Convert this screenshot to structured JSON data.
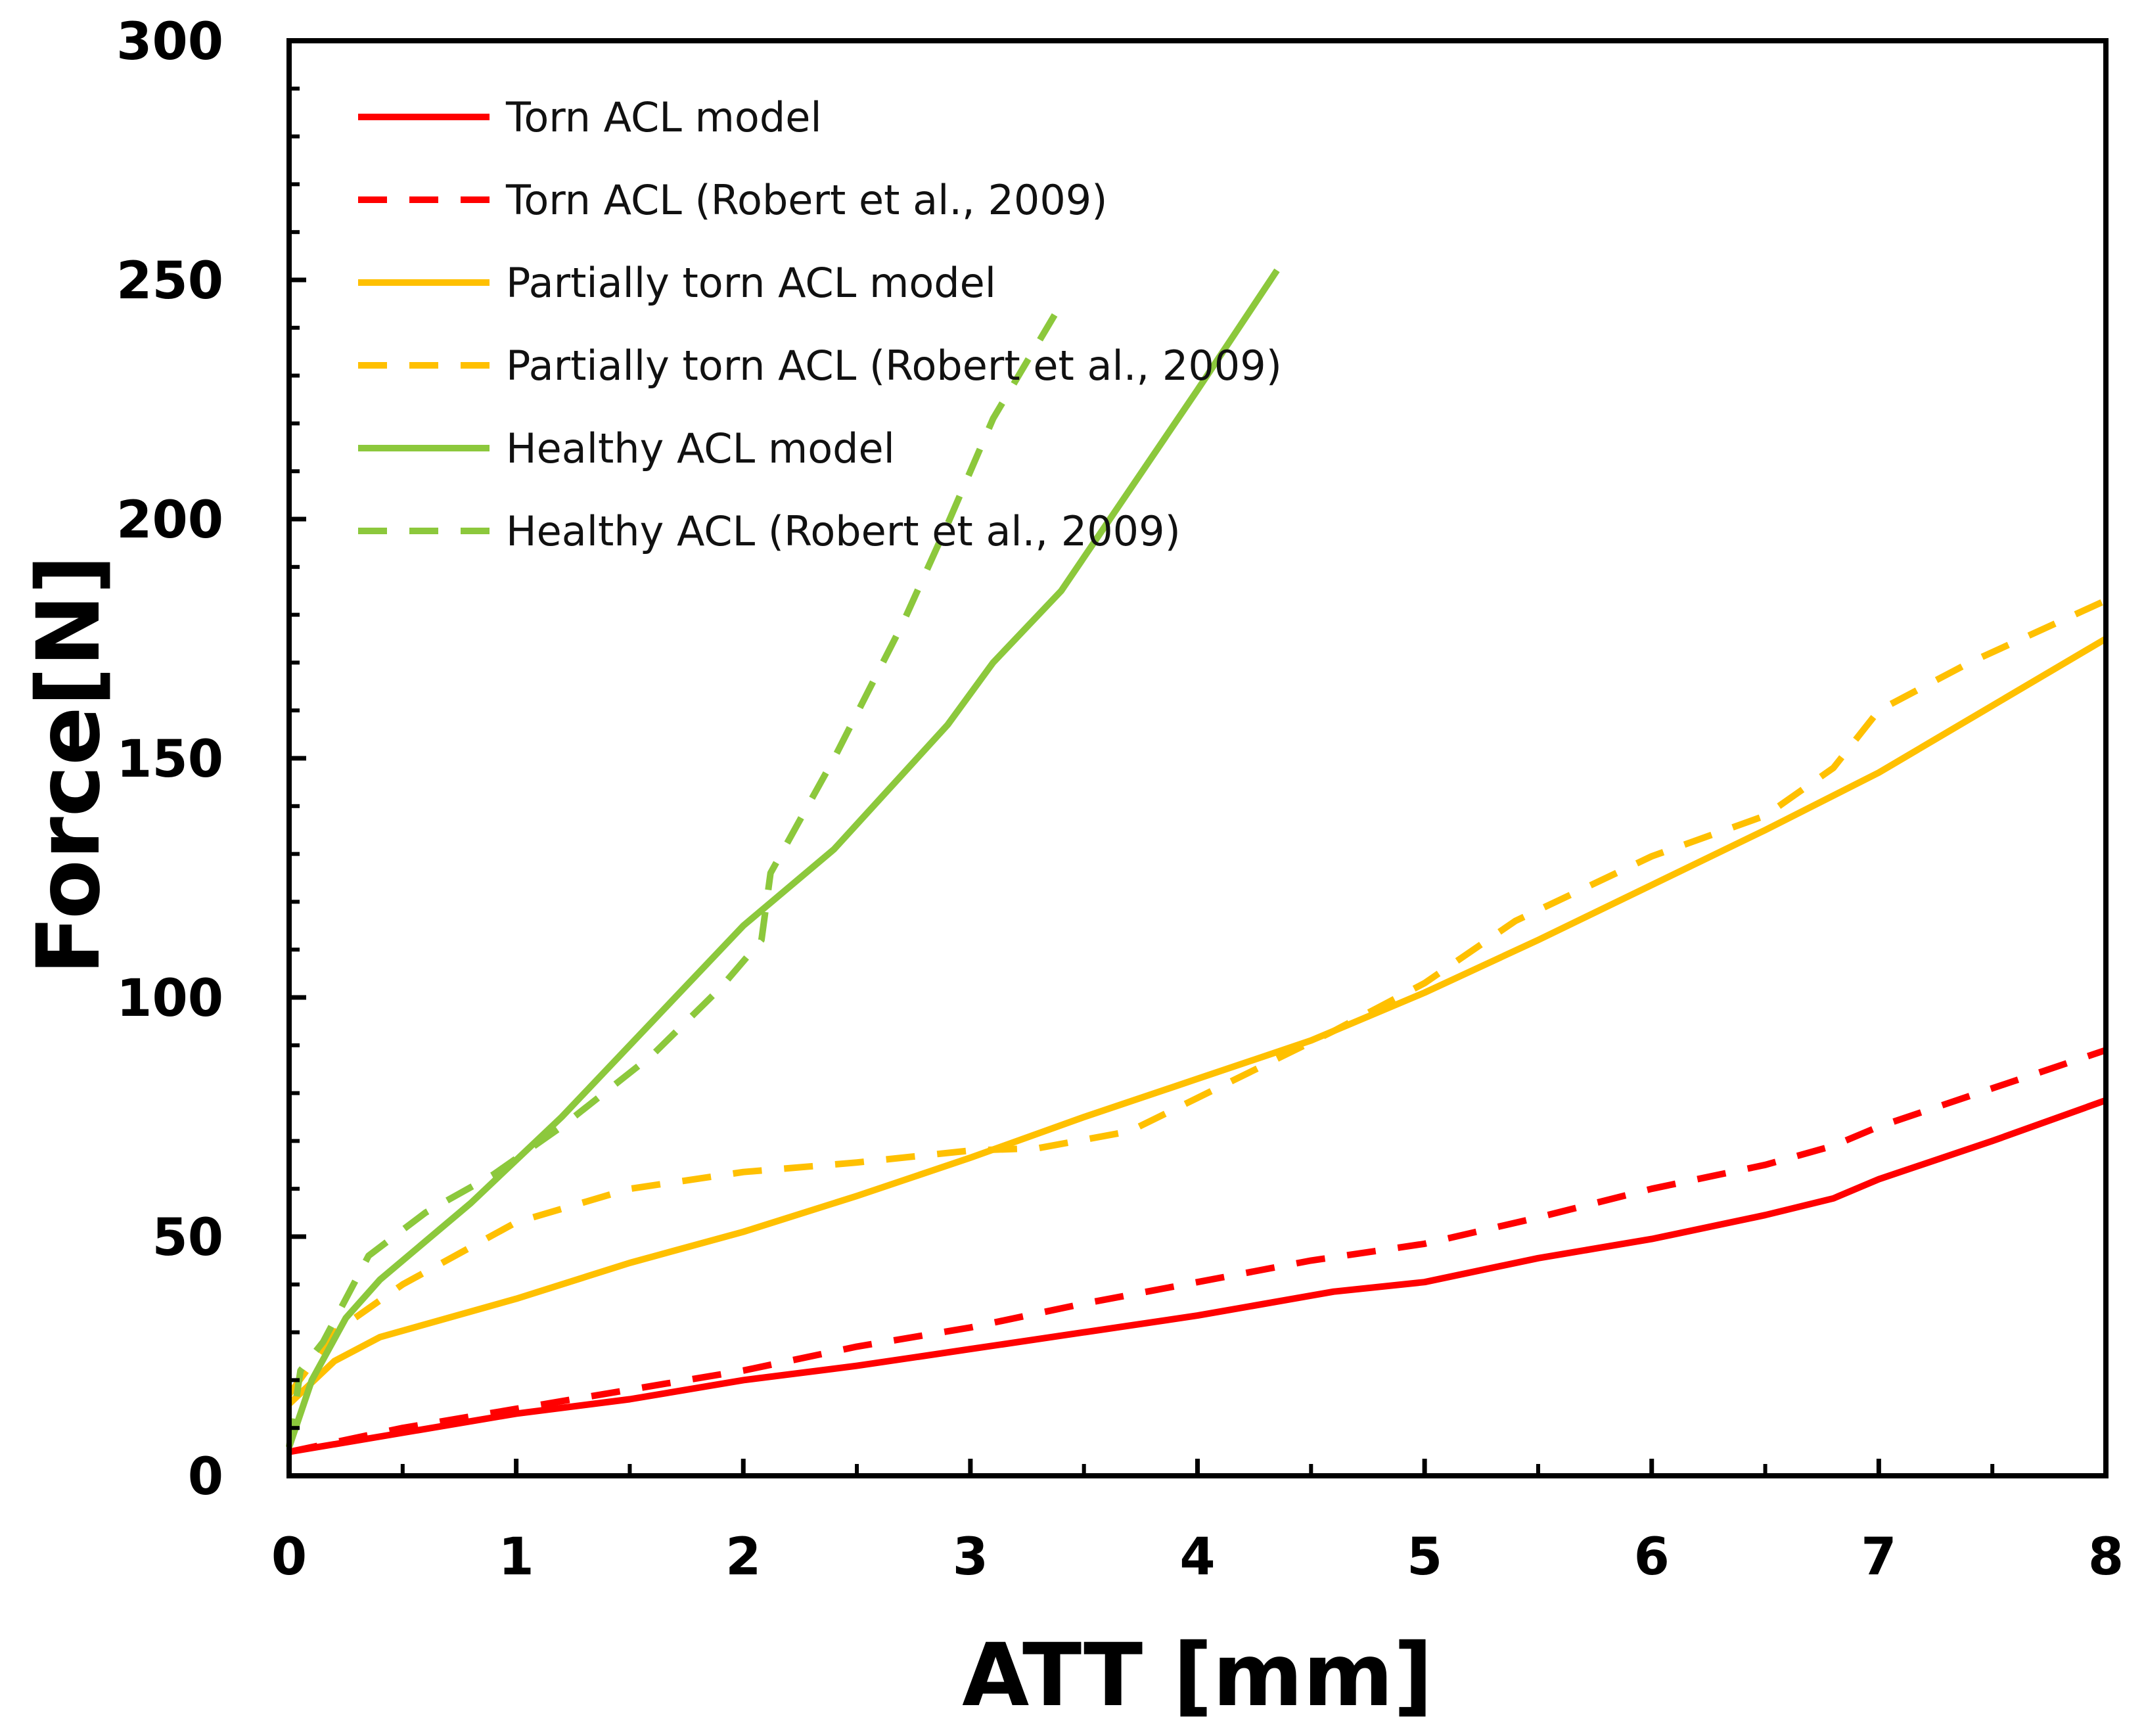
{
  "chart_data": {
    "type": "line",
    "title": "",
    "xlabel": "ATT [mm]",
    "ylabel": "Force[N]",
    "xlim": [
      0,
      8
    ],
    "ylim": [
      0,
      300
    ],
    "xticks": [
      0,
      1,
      2,
      3,
      4,
      5,
      6,
      7,
      8
    ],
    "yticks": [
      0,
      50,
      100,
      150,
      200,
      250,
      300
    ],
    "grid": false,
    "legend_position": "top-left",
    "series": [
      {
        "name": "Torn ACL model",
        "color": "#ff0000",
        "dash": "solid",
        "x": [
          0,
          0.5,
          1.0,
          1.5,
          2.0,
          2.5,
          3.0,
          3.5,
          4.0,
          4.6,
          5.0,
          5.5,
          6.0,
          6.5,
          6.8,
          7.0,
          7.5,
          8.0
        ],
        "y": [
          5,
          9,
          13,
          16,
          20,
          23,
          26.5,
          30,
          33.5,
          38.5,
          40.5,
          45.5,
          49.5,
          54.5,
          58,
          62,
          70,
          78.5
        ]
      },
      {
        "name": "Torn ACL (Robert et al., 2009)",
        "color": "#ff0000",
        "dash": "dashed",
        "x": [
          0,
          0.5,
          1.0,
          1.5,
          2.0,
          2.5,
          3.0,
          3.5,
          4.0,
          4.5,
          5.0,
          5.5,
          6.0,
          6.5,
          6.8,
          7.0,
          7.5,
          8.0
        ],
        "y": [
          5,
          10,
          14,
          18,
          22,
          27,
          31,
          36,
          40.5,
          45,
          48.5,
          54,
          60,
          65,
          69,
          73,
          81,
          89
        ]
      },
      {
        "name": "Partially torn ACL model",
        "color": "#ffc000",
        "dash": "solid",
        "x": [
          0,
          0.2,
          0.4,
          1.0,
          1.5,
          2.0,
          2.5,
          3.0,
          3.5,
          4.0,
          4.5,
          5.0,
          5.5,
          6.0,
          6.5,
          7.0,
          7.5,
          8.0
        ],
        "y": [
          15,
          24,
          29,
          37,
          44.5,
          51,
          58.5,
          66.5,
          75,
          83,
          91,
          101,
          112,
          123.5,
          135,
          147,
          161,
          175
        ]
      },
      {
        "name": "Partially torn ACL (Robert et al., 2009)",
        "color": "#ffc000",
        "dash": "dashed",
        "x": [
          0,
          0.2,
          0.5,
          1.0,
          1.5,
          2.0,
          2.5,
          3.0,
          3.3,
          3.7,
          4.0,
          4.6,
          5.0,
          5.4,
          6.0,
          6.5,
          6.8,
          7.0,
          7.4,
          8.0
        ],
        "y": [
          17,
          30,
          40,
          53,
          60,
          63.5,
          65.5,
          68,
          68.5,
          72,
          79,
          93,
          103,
          116,
          129.5,
          138,
          148,
          160,
          170,
          183
        ]
      },
      {
        "name": "Healthy ACL model",
        "color": "#8cc83c",
        "dash": "solid",
        "x": [
          0,
          0.1,
          0.25,
          0.4,
          0.8,
          1.2,
          1.6,
          2.0,
          2.4,
          2.9,
          3.1,
          3.4,
          3.7,
          4.0,
          4.35
        ],
        "y": [
          6,
          20,
          33,
          41,
          57,
          75,
          95,
          115,
          131,
          157,
          170,
          185,
          206,
          227,
          252
        ]
      },
      {
        "name": "Healthy ACL (Robert et al., 2009)",
        "color": "#8cc83c",
        "dash": "dashed",
        "x": [
          0,
          0.05,
          0.15,
          0.35,
          0.6,
          0.9,
          1.2,
          1.6,
          1.9,
          2.08,
          2.12,
          2.4,
          2.7,
          2.9,
          3.1,
          3.4
        ],
        "y": [
          6,
          22,
          28,
          46,
          55,
          63,
          73,
          88,
          102,
          112,
          126,
          150,
          178,
          199,
          221,
          245
        ]
      }
    ]
  }
}
